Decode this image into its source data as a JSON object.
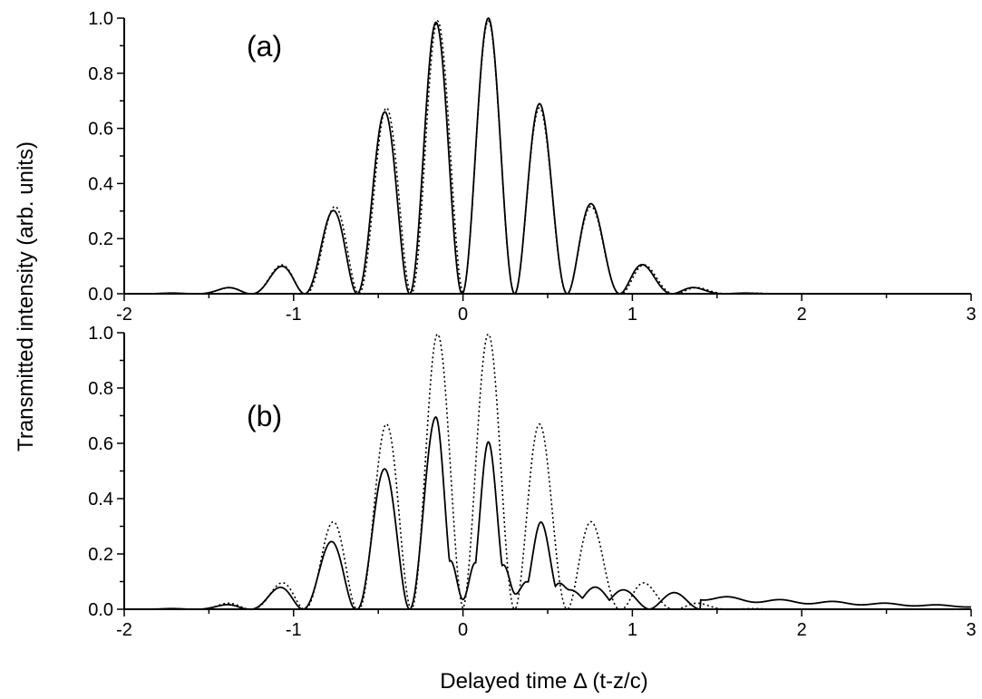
{
  "chart_data": {
    "type": "line",
    "ylabel": "Transmitted intensity (arb. units)",
    "xlabel": "Delayed time Δ (t-z/c)",
    "x_tick_labels": [
      "-2",
      "-1",
      "0",
      "1",
      "2",
      "3"
    ],
    "y_tick_labels": [
      "0.0",
      "0.2",
      "0.4",
      "0.6",
      "0.8",
      "1.0"
    ],
    "xlim": [
      -2,
      3
    ],
    "ylim": [
      0,
      1
    ],
    "grid": false,
    "panels": [
      {
        "label": "(a)",
        "series": [
          {
            "style": "solid",
            "points": [
              [
                -2,
                0
              ],
              [
                -1.75,
                0.002
              ],
              [
                -1.41,
                0.02
              ],
              [
                -1.09,
                0.095
              ],
              [
                -0.78,
                0.295
              ],
              [
                -0.47,
                0.655
              ],
              [
                -0.16,
                0.985
              ],
              [
                0.15,
                1.0
              ],
              [
                0.46,
                0.685
              ],
              [
                0.77,
                0.32
              ],
              [
                1.08,
                0.1
              ],
              [
                1.39,
                0.02
              ],
              [
                1.7,
                0.002
              ],
              [
                2,
                0
              ],
              [
                3,
                0
              ]
            ]
          },
          {
            "style": "dotted",
            "points": [
              [
                -2,
                0
              ],
              [
                -1.75,
                0.002
              ],
              [
                -1.41,
                0.02
              ],
              [
                -1.09,
                0.1
              ],
              [
                -0.77,
                0.31
              ],
              [
                -0.46,
                0.67
              ],
              [
                -0.15,
                0.99
              ],
              [
                0.15,
                0.99
              ],
              [
                0.46,
                0.67
              ],
              [
                0.77,
                0.31
              ],
              [
                1.09,
                0.1
              ],
              [
                1.41,
                0.02
              ],
              [
                1.75,
                0.002
              ],
              [
                2,
                0
              ],
              [
                3,
                0
              ]
            ]
          }
        ]
      },
      {
        "label": "(b)",
        "series": [
          {
            "style": "solid",
            "points": [
              [
                -2,
                0
              ],
              [
                -1.75,
                0.002
              ],
              [
                -1.42,
                0.015
              ],
              [
                -1.1,
                0.075
              ],
              [
                -0.79,
                0.24
              ],
              [
                -0.47,
                0.505
              ],
              [
                -0.16,
                0.695
              ],
              [
                0.0,
                0.035
              ],
              [
                0.15,
                0.605
              ],
              [
                0.31,
                0.055
              ],
              [
                0.46,
                0.315
              ],
              [
                0.63,
                0.07
              ],
              [
                0.78,
                0.08
              ],
              [
                0.95,
                0.07
              ],
              [
                1.25,
                0.06
              ],
              [
                1.57,
                0.045
              ],
              [
                1.87,
                0.035
              ],
              [
                2.2,
                0.028
              ],
              [
                2.6,
                0.02
              ],
              [
                3.0,
                0.012
              ]
            ]
          },
          {
            "style": "dotted",
            "points": [
              [
                -2,
                0
              ],
              [
                -1.75,
                0.002
              ],
              [
                -1.41,
                0.02
              ],
              [
                -1.09,
                0.09
              ],
              [
                -0.78,
                0.31
              ],
              [
                -0.46,
                0.665
              ],
              [
                -0.15,
                0.995
              ],
              [
                0.15,
                0.995
              ],
              [
                0.46,
                0.665
              ],
              [
                0.77,
                0.31
              ],
              [
                1.09,
                0.09
              ],
              [
                1.41,
                0.02
              ],
              [
                1.75,
                0.002
              ],
              [
                2,
                0
              ],
              [
                3,
                0
              ]
            ]
          }
        ]
      }
    ]
  }
}
